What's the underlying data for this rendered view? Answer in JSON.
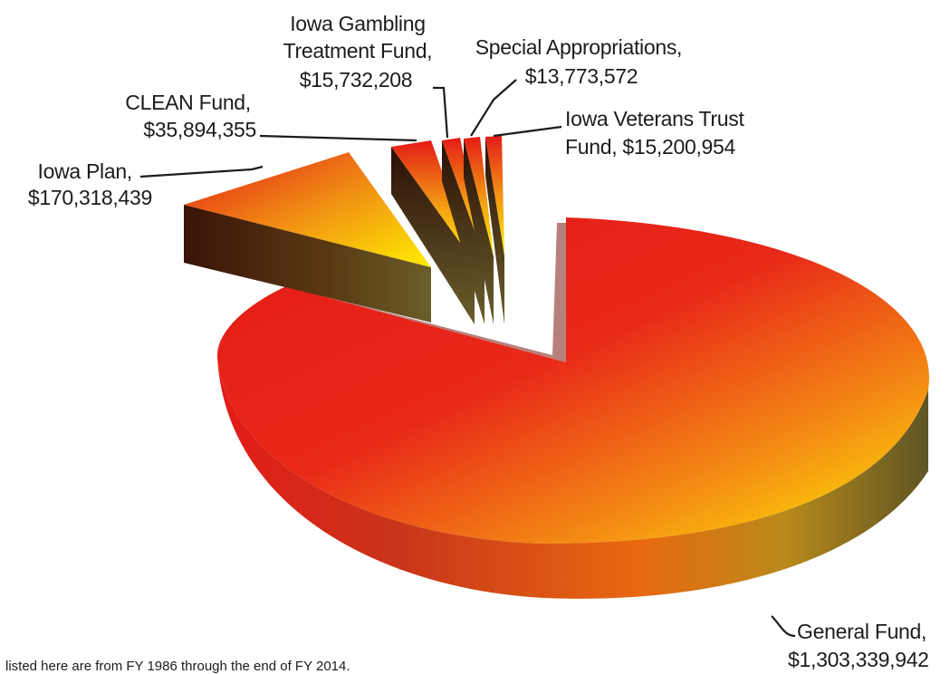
{
  "chart_data": {
    "type": "pie",
    "subtype": "3d-exploded",
    "slices": [
      {
        "name": "General Fund",
        "value": 1303339942,
        "label": [
          "General Fund,",
          "$1,303,339,942"
        ]
      },
      {
        "name": "Iowa Plan",
        "value": 170318439,
        "label": [
          "Iowa Plan,",
          "$170,318,439"
        ]
      },
      {
        "name": "CLEAN Fund",
        "value": 35894355,
        "label": [
          "CLEAN Fund,",
          "$35,894,355"
        ]
      },
      {
        "name": "Iowa Gambling Treatment Fund",
        "value": 15732208,
        "label": [
          "Iowa Gambling",
          "Treatment Fund,",
          "$15,732,208"
        ]
      },
      {
        "name": "Special Appropriations",
        "value": 13773572,
        "label": [
          "Special Appropriations,",
          "$13,773,572"
        ]
      },
      {
        "name": "Iowa Veterans Trust Fund",
        "value": 15200954,
        "label": [
          "Iowa Veterans Trust",
          "Fund, $15,200,954"
        ]
      }
    ],
    "colors": {
      "highlight": "#ffee00",
      "mid": "#f39a10",
      "base": "#e41b17",
      "side_dark": "#3a2410",
      "side_olive": "#6b5e2c"
    }
  },
  "note": "listed here are from FY 1986 through the end of FY 2014."
}
